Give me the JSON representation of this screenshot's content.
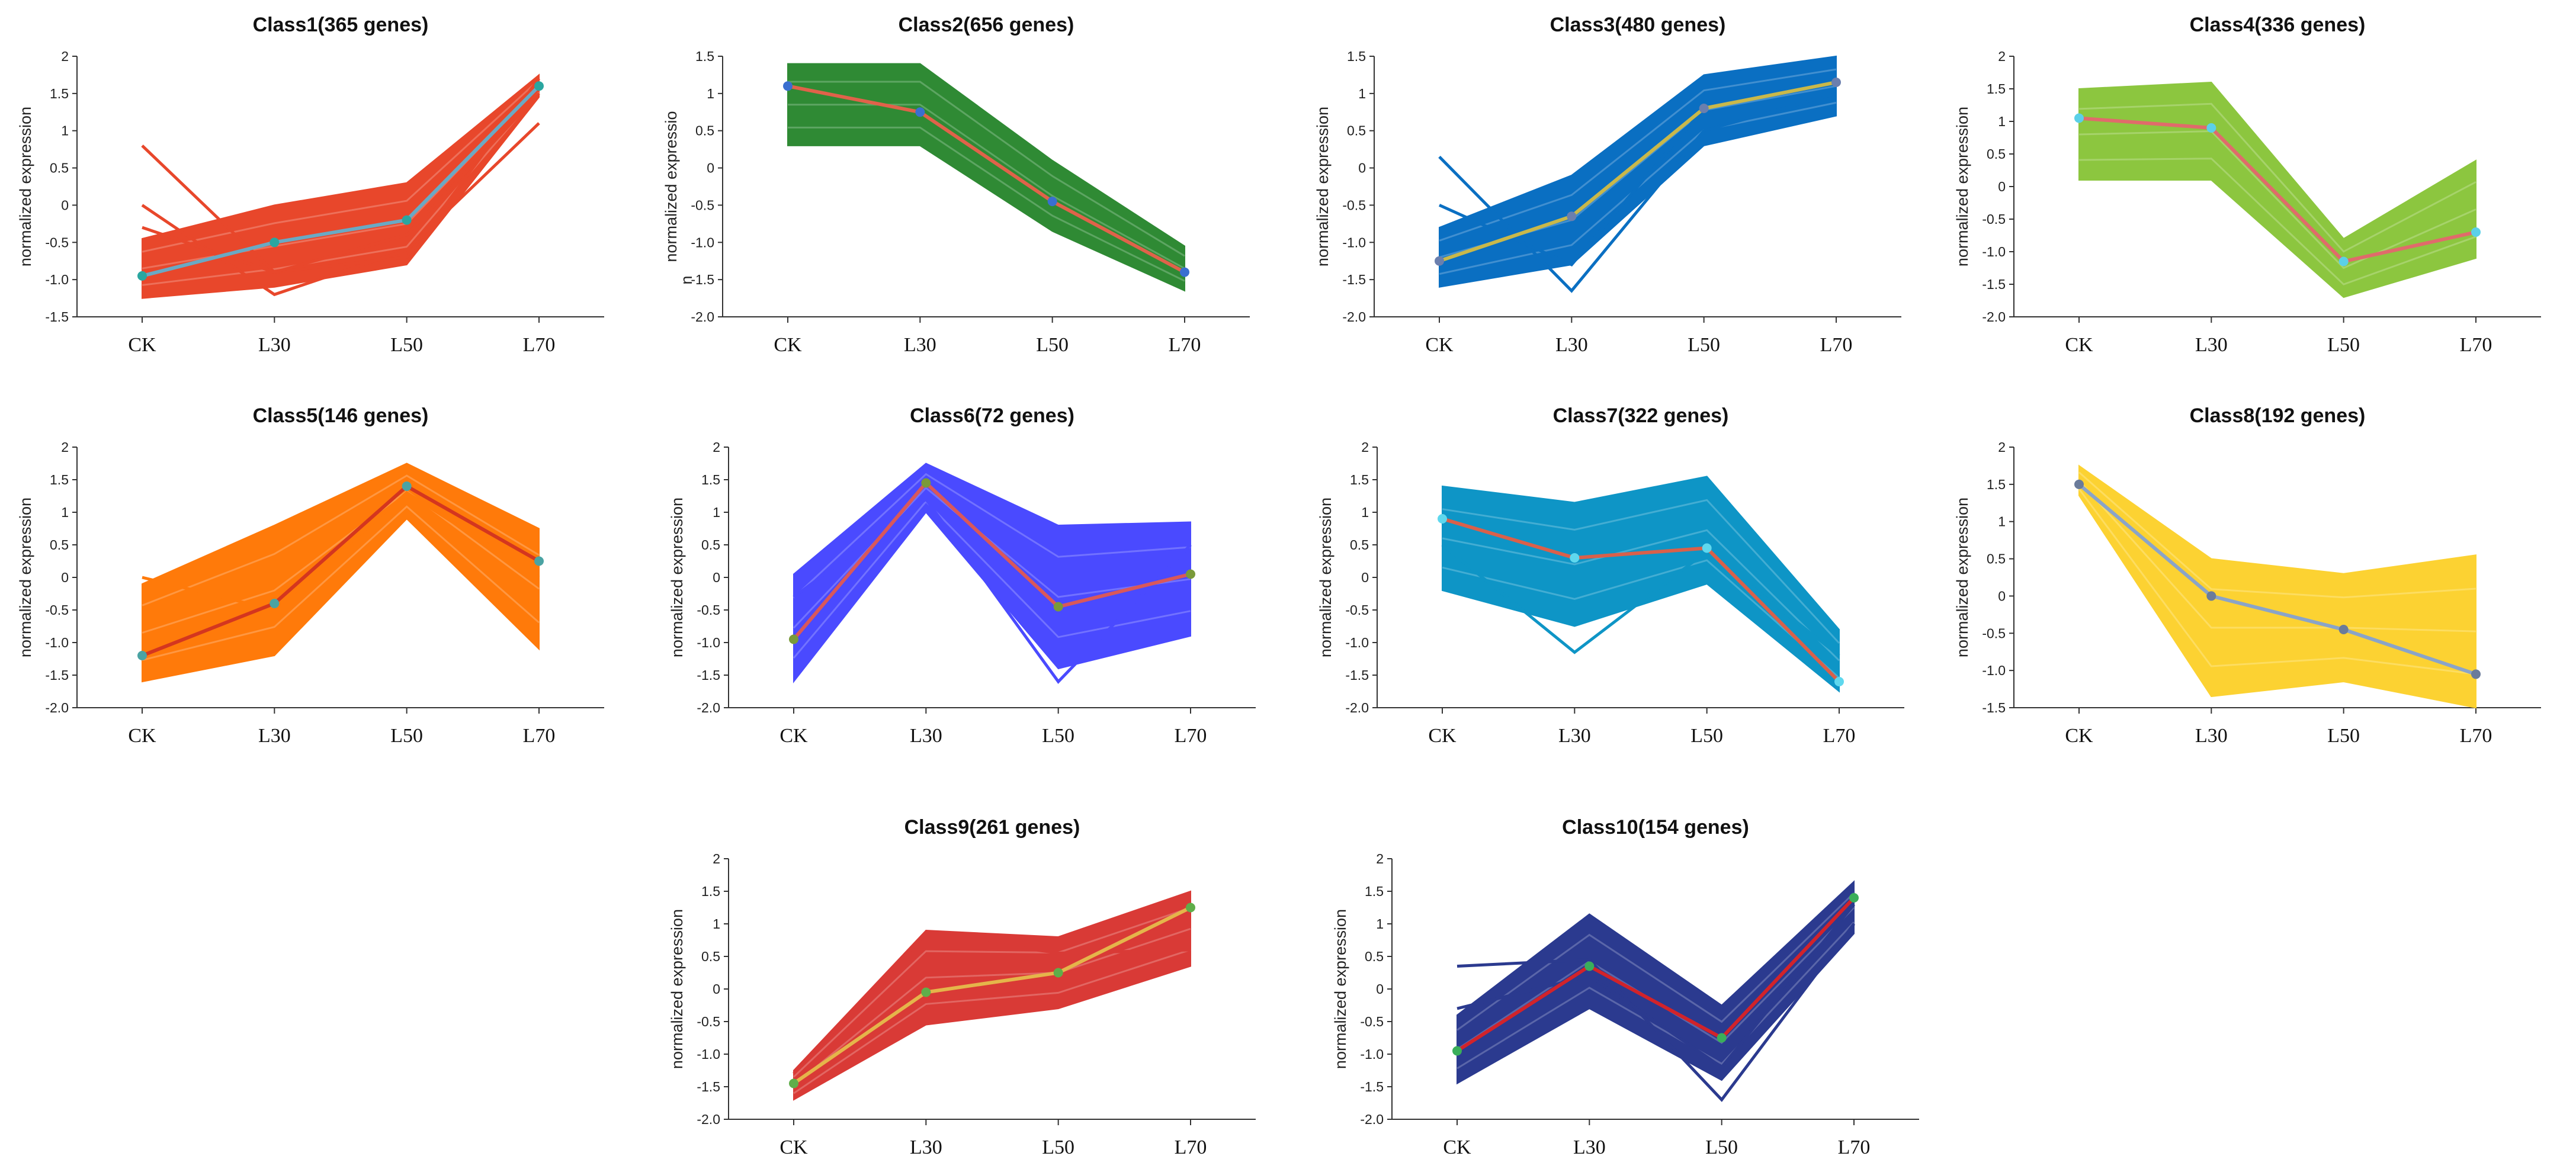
{
  "chart_data": [
    {
      "type": "line",
      "title": "Class1(365 genes)",
      "ylabel": "normalized expression",
      "categories": [
        "CK",
        "L30",
        "L50",
        "L70"
      ],
      "ylim": [
        -1.5,
        2
      ],
      "yticks": [
        "-1.5",
        "-1.0",
        "-0.5",
        "0",
        "0.5",
        "1",
        "1.5",
        "2"
      ],
      "band_color": "#e8472b",
      "band_upper": [
        -0.45,
        0.0,
        0.3,
        1.75
      ],
      "band_lower": [
        -1.25,
        -1.1,
        -0.8,
        1.45
      ],
      "stray_lines": [
        [
          0.8,
          -0.9,
          -0.7,
          1.7
        ],
        [
          0.0,
          -1.2,
          -0.6,
          1.1
        ],
        [
          -0.3,
          -0.9,
          -0.4,
          1.5
        ]
      ],
      "mean_color": "#6aa9c4",
      "marker_color": "#2aa6a0",
      "series": [
        {
          "name": "mean",
          "values": [
            -0.95,
            -0.5,
            -0.2,
            1.6
          ]
        }
      ]
    },
    {
      "type": "line",
      "title": "Class2(656 genes)",
      "ylabel": "normalized expressio",
      "ylabel_extra": "n",
      "categories": [
        "CK",
        "L30",
        "L50",
        "L70"
      ],
      "ylim": [
        -2.0,
        1.5
      ],
      "yticks": [
        "-2.0",
        "-1.5",
        "-1.0",
        "-0.5",
        "0",
        "0.5",
        "1",
        "1.5"
      ],
      "band_color": "#2f8a34",
      "band_upper": [
        1.4,
        1.4,
        0.1,
        -1.05
      ],
      "band_lower": [
        0.3,
        0.3,
        -0.85,
        -1.65
      ],
      "stray_lines": [],
      "mean_color": "#e0624a",
      "marker_color": "#3a6fd0",
      "series": [
        {
          "name": "mean",
          "values": [
            1.1,
            0.75,
            -0.45,
            -1.4
          ]
        }
      ]
    },
    {
      "type": "line",
      "title": "Class3(480 genes)",
      "ylabel": "normalized expression",
      "categories": [
        "CK",
        "L30",
        "L50",
        "L70"
      ],
      "ylim": [
        -2.0,
        1.5
      ],
      "yticks": [
        "-2.0",
        "-1.5",
        "-1.0",
        "-0.5",
        "0",
        "0.5",
        "1",
        "1.5"
      ],
      "band_color": "#0a6fc2",
      "band_upper": [
        -0.8,
        -0.1,
        1.25,
        1.5
      ],
      "band_lower": [
        -1.6,
        -1.3,
        0.3,
        0.7
      ],
      "stray_lines": [
        [
          0.15,
          -1.65,
          0.5,
          1.0
        ],
        [
          -0.5,
          -1.3,
          0.8,
          1.2
        ]
      ],
      "mean_color": "#c9b84a",
      "marker_color": "#6b7fae",
      "series": [
        {
          "name": "mean",
          "values": [
            -1.25,
            -0.65,
            0.8,
            1.15
          ]
        }
      ]
    },
    {
      "type": "line",
      "title": "Class4(336 genes)",
      "ylabel": "normalized expression",
      "categories": [
        "CK",
        "L30",
        "L50",
        "L70"
      ],
      "ylim": [
        -2.0,
        2
      ],
      "yticks": [
        "-2.0",
        "-1.5",
        "-1.0",
        "-0.5",
        "0",
        "0.5",
        "1",
        "1.5",
        "2"
      ],
      "band_color": "#8cc63f",
      "band_upper": [
        1.5,
        1.6,
        -0.8,
        0.4
      ],
      "band_lower": [
        0.1,
        0.1,
        -1.7,
        -1.1
      ],
      "stray_lines": [],
      "mean_color": "#e06b6b",
      "marker_color": "#5bd0e8",
      "series": [
        {
          "name": "mean",
          "values": [
            1.05,
            0.9,
            -1.15,
            -0.7
          ]
        }
      ]
    },
    {
      "type": "line",
      "title": "Class5(146 genes)",
      "ylabel": "normalized expression",
      "categories": [
        "CK",
        "L30",
        "L50",
        "L70"
      ],
      "ylim": [
        -2.0,
        2
      ],
      "yticks": [
        "-2.0",
        "-1.5",
        "-1.0",
        "-0.5",
        "0",
        "0.5",
        "1",
        "1.5",
        "2"
      ],
      "band_color": "#ff7a0a",
      "band_upper": [
        -0.1,
        0.8,
        1.75,
        0.75
      ],
      "band_lower": [
        -1.6,
        -1.2,
        0.9,
        -1.1
      ],
      "stray_lines": [
        [
          0.0,
          -0.5,
          1.3,
          0.0
        ]
      ],
      "mean_color": "#d4361f",
      "marker_color": "#4aa3a3",
      "series": [
        {
          "name": "mean",
          "values": [
            -1.2,
            -0.4,
            1.4,
            0.25
          ]
        }
      ]
    },
    {
      "type": "line",
      "title": "Class6(72 genes)",
      "ylabel": "normalized expression",
      "categories": [
        "CK",
        "L30",
        "L50",
        "L70"
      ],
      "ylim": [
        -2.0,
        2
      ],
      "yticks": [
        "-2.0",
        "-1.5",
        "-1.0",
        "-0.5",
        "0",
        "0.5",
        "1",
        "1.5",
        "2"
      ],
      "band_color": "#4a4aff",
      "band_upper": [
        0.05,
        1.75,
        0.8,
        0.85
      ],
      "band_lower": [
        -1.6,
        1.0,
        -1.4,
        -0.9
      ],
      "stray_lines": [
        [
          -0.3,
          1.2,
          -1.6,
          0.5
        ]
      ],
      "mean_color": "#d9585a",
      "marker_color": "#7a9a3a",
      "series": [
        {
          "name": "mean",
          "values": [
            -0.95,
            1.45,
            -0.45,
            0.05
          ]
        }
      ]
    },
    {
      "type": "line",
      "title": "Class7(322 genes)",
      "ylabel": "normalized expression",
      "categories": [
        "CK",
        "L30",
        "L50",
        "L70"
      ],
      "ylim": [
        -2.0,
        2
      ],
      "yticks": [
        "-2.0",
        "-1.5",
        "-1.0",
        "-0.5",
        "0",
        "0.5",
        "1",
        "1.5",
        "2"
      ],
      "band_color": "#0e95c6",
      "band_upper": [
        1.4,
        1.15,
        1.55,
        -0.8
      ],
      "band_lower": [
        -0.2,
        -0.75,
        -0.1,
        -1.75
      ],
      "stray_lines": [
        [
          0.5,
          -1.15,
          0.4,
          -1.2
        ]
      ],
      "mean_color": "#d9604a",
      "marker_color": "#5fd8ee",
      "series": [
        {
          "name": "mean",
          "values": [
            0.9,
            0.3,
            0.45,
            -1.6
          ]
        }
      ]
    },
    {
      "type": "line",
      "title": "Class8(192 genes)",
      "ylabel": "normalized expression",
      "categories": [
        "CK",
        "L30",
        "L50",
        "L70"
      ],
      "ylim": [
        -1.5,
        2
      ],
      "yticks": [
        "-1.5",
        "-1.0",
        "-0.5",
        "0",
        "0.5",
        "1",
        "1.5",
        "2"
      ],
      "band_color": "#fcd232",
      "band_upper": [
        1.75,
        0.5,
        0.3,
        0.55
      ],
      "band_lower": [
        1.35,
        -1.35,
        -1.15,
        -1.5
      ],
      "stray_lines": [],
      "mean_color": "#8aa4c8",
      "marker_color": "#6a7b9a",
      "series": [
        {
          "name": "mean",
          "values": [
            1.5,
            0.0,
            -0.45,
            -1.05
          ]
        }
      ]
    },
    {
      "type": "line",
      "title": "Class9(261 genes)",
      "ylabel": "normalized expression",
      "categories": [
        "CK",
        "L30",
        "L50",
        "L70"
      ],
      "ylim": [
        -2.0,
        2
      ],
      "yticks": [
        "-2.0",
        "-1.5",
        "-1.0",
        "-0.5",
        "0",
        "0.5",
        "1",
        "1.5",
        "2"
      ],
      "band_color": "#d93a36",
      "band_upper": [
        -1.25,
        0.9,
        0.8,
        1.5
      ],
      "band_lower": [
        -1.7,
        -0.55,
        -0.3,
        0.35
      ],
      "stray_lines": [
        [
          -1.3,
          0.85,
          0.55,
          0.6
        ]
      ],
      "mean_color": "#e5b54a",
      "marker_color": "#5fae4a",
      "series": [
        {
          "name": "mean",
          "values": [
            -1.45,
            -0.05,
            0.25,
            1.25
          ]
        }
      ]
    },
    {
      "type": "line",
      "title": "Class10(154 genes)",
      "ylabel": "normalized expression",
      "categories": [
        "CK",
        "L30",
        "L50",
        "L70"
      ],
      "ylim": [
        -2.0,
        2
      ],
      "yticks": [
        "-2.0",
        "-1.5",
        "-1.0",
        "-0.5",
        "0",
        "0.5",
        "1",
        "1.5",
        "2"
      ],
      "band_color": "#2b3a8f",
      "band_upper": [
        -0.4,
        1.15,
        -0.25,
        1.65
      ],
      "band_lower": [
        -1.45,
        -0.3,
        -1.4,
        0.85
      ],
      "stray_lines": [
        [
          0.35,
          0.45,
          -1.7,
          1.0
        ],
        [
          -0.3,
          0.2,
          -1.2,
          1.3
        ]
      ],
      "mean_color": "#d2232a",
      "marker_color": "#3aae5a",
      "series": [
        {
          "name": "mean",
          "values": [
            -0.95,
            0.35,
            -0.75,
            1.4
          ]
        }
      ]
    }
  ]
}
